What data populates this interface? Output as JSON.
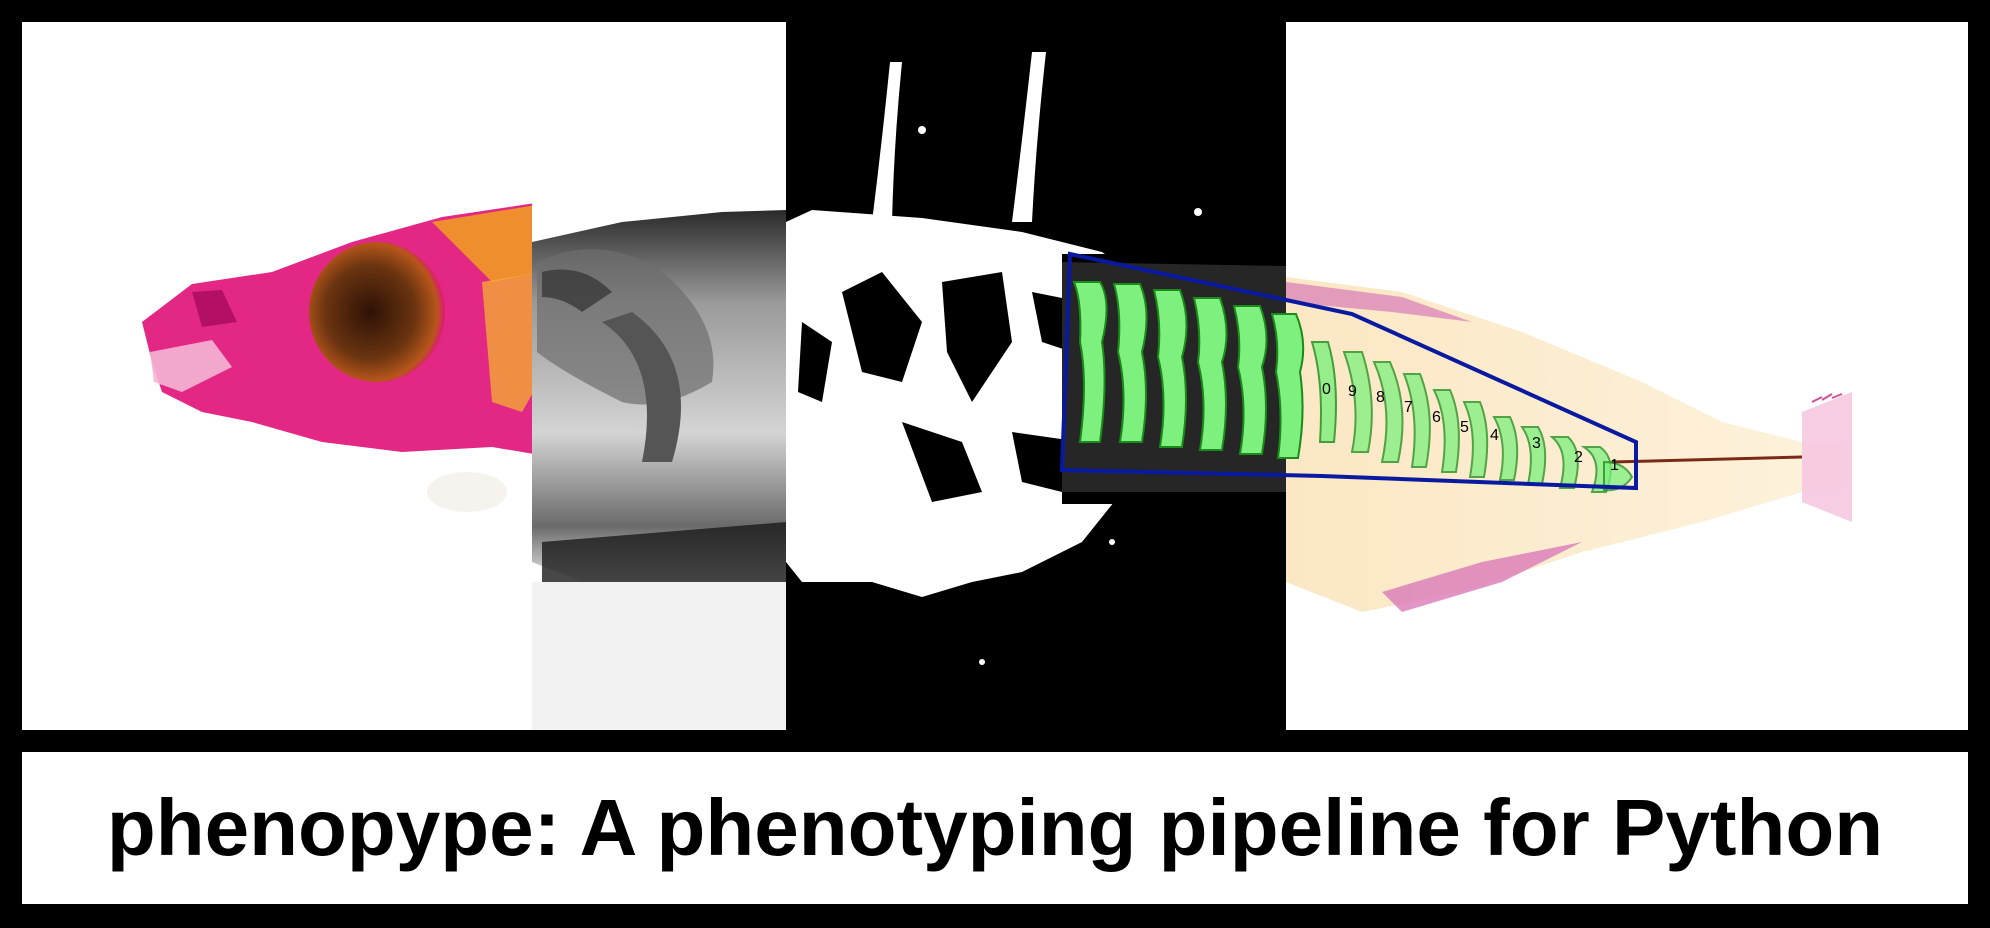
{
  "caption": "phenopype: A phenotyping pipeline for Python",
  "vertebra_labels": [
    "0",
    "9",
    "8",
    "7",
    "6",
    "5",
    "4",
    "3",
    "2",
    "1"
  ],
  "colors": {
    "frame": "#000000",
    "stain_pink": "#e0167a",
    "eye_brown": "#5a2a0e",
    "bone_orange": "#f0a020",
    "segment_green": "#7df07d",
    "polygon_blue": "#0a1aa0",
    "background": "#ffffff"
  }
}
